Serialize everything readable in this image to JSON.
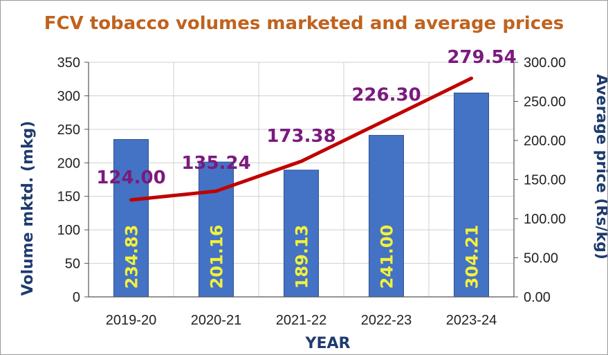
{
  "chart_data": {
    "type": "bar",
    "title": "FCV tobacco volumes marketed and average prices",
    "xlabel": "YEAR",
    "ylabel": "Volume mktd. (mkg)",
    "y2label": "Average price (Rs/kg)",
    "categories": [
      "2019-20",
      "2020-21",
      "2021-22",
      "2022-23",
      "2023-24"
    ],
    "ylim": [
      0,
      350
    ],
    "yticks": [
      "0",
      "50",
      "100",
      "150",
      "200",
      "250",
      "300",
      "350"
    ],
    "y2lim": [
      0,
      300
    ],
    "y2ticks": [
      "0.00",
      "50.00",
      "100.00",
      "150.00",
      "200.00",
      "250.00",
      "300.00"
    ],
    "grid": true,
    "series": [
      {
        "type": "bar",
        "axis": "left",
        "values": [
          234.83,
          201.16,
          189.13,
          241.0,
          304.21
        ],
        "labels": [
          "234.83",
          "201.16",
          "189.13",
          "241.00",
          "304.21"
        ],
        "color": "#4472c4"
      },
      {
        "type": "line",
        "axis": "right",
        "values": [
          124.0,
          135.24,
          173.38,
          226.3,
          279.54
        ],
        "labels": [
          "124.00",
          "135.24",
          "173.38",
          "226.30",
          "279.54"
        ],
        "color": "#c00000"
      }
    ]
  }
}
